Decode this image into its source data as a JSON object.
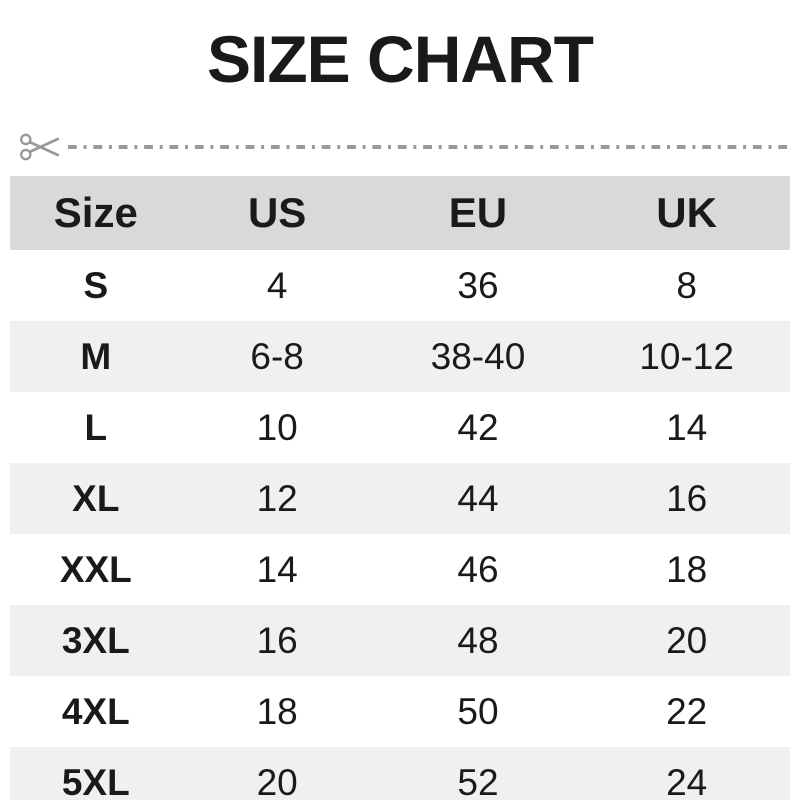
{
  "title": "SIZE CHART",
  "cut_line": {
    "icon": "scissors-icon",
    "style": "dash-dot",
    "color": "#999999"
  },
  "colors": {
    "header_bg": "#d9d9d9",
    "row_alt_bg": "#f0f0f0",
    "text": "#1a1a1a",
    "cut_gray": "#999999"
  },
  "table": {
    "columns": [
      "Size",
      "US",
      "EU",
      "UK"
    ],
    "rows": [
      [
        "S",
        "4",
        "36",
        "8"
      ],
      [
        "M",
        "6-8",
        "38-40",
        "10-12"
      ],
      [
        "L",
        "10",
        "42",
        "14"
      ],
      [
        "XL",
        "12",
        "44",
        "16"
      ],
      [
        "XXL",
        "14",
        "46",
        "18"
      ],
      [
        "3XL",
        "16",
        "48",
        "20"
      ],
      [
        "4XL",
        "18",
        "50",
        "22"
      ],
      [
        "5XL",
        "20",
        "52",
        "24"
      ]
    ]
  }
}
